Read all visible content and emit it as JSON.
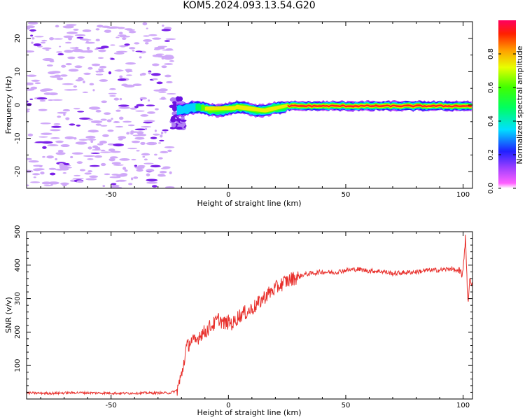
{
  "title": "KOM5.2024.093.13.54.G20",
  "chart_data": [
    {
      "type": "heatmap",
      "xlabel": "Height of straight line (km)",
      "ylabel": "Frequency (Hz)",
      "xlim": [
        -86,
        104
      ],
      "ylim": [
        -25,
        25
      ],
      "xticks": [
        -50,
        0,
        50,
        100
      ],
      "yticks": [
        -20,
        -10,
        0,
        10,
        20
      ],
      "colorbar": {
        "label": "Normalized spectral amplitude",
        "range": [
          0,
          1
        ],
        "ticks": [
          0.0,
          0.2,
          0.4,
          0.6,
          0.8
        ],
        "colormap": "hsv-rainbow"
      },
      "regions": [
        {
          "description_x_range": [
            -86,
            -24
          ],
          "y_range": [
            -25,
            25
          ],
          "amplitude": 0.05,
          "note": "scattered low-amplitude speckle"
        },
        {
          "description_x_range": [
            -24,
            -19
          ],
          "y_range": [
            -7,
            2
          ],
          "amplitude": 0.15
        },
        {
          "description_x_range": [
            -19,
            25
          ],
          "y_range": [
            -2.5,
            1.5
          ],
          "amplitude": 0.45
        },
        {
          "description_x_range": [
            25,
            104
          ],
          "y_range": [
            -1.5,
            1.0
          ],
          "amplitude": 0.85
        }
      ]
    },
    {
      "type": "line",
      "xlabel": "Height of straight line (km)",
      "ylabel": "SNR (v/v)",
      "xlim": [
        -86,
        104
      ],
      "ylim": [
        0,
        500
      ],
      "xticks": [
        -50,
        0,
        50,
        100
      ],
      "yticks": [
        100,
        200,
        300,
        400,
        500
      ],
      "series": [
        {
          "color": "#e8302c",
          "x": [
            -86,
            -75,
            -65,
            -55,
            -45,
            -35,
            -25,
            -22,
            -20,
            -18,
            -16,
            -14,
            -12,
            -10,
            -8,
            -6,
            -4,
            -2,
            0,
            2,
            4,
            6,
            8,
            10,
            12,
            14,
            16,
            18,
            20,
            22,
            24,
            26,
            28,
            30,
            32,
            35,
            40,
            45,
            50,
            55,
            60,
            65,
            70,
            75,
            80,
            85,
            90,
            95,
            98,
            100,
            101,
            102,
            103,
            104
          ],
          "y": [
            18,
            17,
            19,
            18,
            17,
            18,
            18,
            25,
            70,
            150,
            175,
            170,
            195,
            200,
            215,
            225,
            240,
            225,
            230,
            225,
            245,
            255,
            260,
            270,
            280,
            295,
            310,
            320,
            330,
            340,
            350,
            355,
            362,
            365,
            372,
            375,
            380,
            378,
            385,
            388,
            383,
            382,
            375,
            378,
            380,
            385,
            385,
            390,
            380,
            375,
            490,
            290,
            360,
            345
          ]
        }
      ]
    }
  ]
}
